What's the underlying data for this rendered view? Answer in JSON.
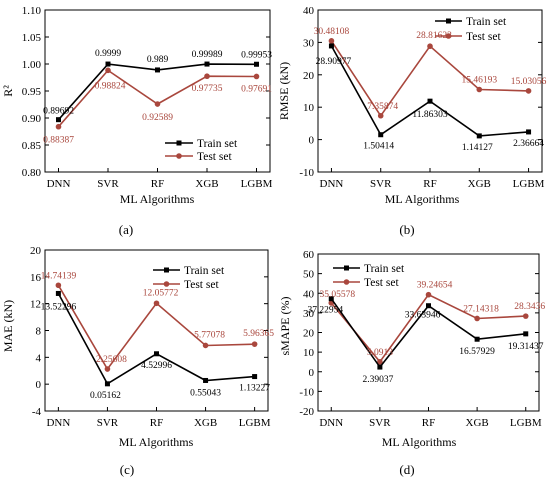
{
  "colors": {
    "train": "#000000",
    "test": "#A9473D"
  },
  "chart_data": [
    {
      "type": "line",
      "panel_label": "(a)",
      "xlabel": "ML Algorithms",
      "ylabel": "R²",
      "categories": [
        "DNN",
        "SVR",
        "RF",
        "XGB",
        "LGBM"
      ],
      "ylim": [
        0.8,
        1.1
      ],
      "yticks": [
        "0.80",
        "0.85",
        "0.90",
        "0.95",
        "1.00",
        "1.05",
        "1.10"
      ],
      "grid": false,
      "legend_position": "lower-right",
      "series": [
        {
          "name": "Train set",
          "values": [
            0.89692,
            0.9999,
            0.989,
            0.99989,
            0.99953
          ],
          "labels": [
            "0.89692",
            "0.9999",
            "0.989",
            "0.99989",
            "0.99953"
          ]
        },
        {
          "name": "Test set",
          "values": [
            0.88387,
            0.98824,
            0.92589,
            0.97735,
            0.97691
          ],
          "labels": [
            "0.88387",
            "0.98824",
            "0.92589",
            "0.97735",
            "0.97691"
          ]
        }
      ]
    },
    {
      "type": "line",
      "panel_label": "(b)",
      "xlabel": "ML Algorithms",
      "ylabel": "RMSE (kN)",
      "categories": [
        "DNN",
        "SVR",
        "RF",
        "XGB",
        "LGBM"
      ],
      "ylim": [
        -10,
        40
      ],
      "yticks": [
        "-10",
        "0",
        "10",
        "20",
        "30",
        "40"
      ],
      "grid": false,
      "legend_position": "top-right",
      "series": [
        {
          "name": "Train set",
          "values": [
            28.90977,
            1.50414,
            11.86303,
            1.14127,
            2.36664
          ],
          "labels": [
            "28.90977",
            "1.50414",
            "11.86303",
            "1.14127",
            "2.36664"
          ]
        },
        {
          "name": "Test set",
          "values": [
            30.48108,
            7.35874,
            28.81623,
            15.46193,
            15.03056
          ],
          "labels": [
            "30.48108",
            "7.35874",
            "28.81623",
            "15.46193",
            "15.03056"
          ]
        }
      ]
    },
    {
      "type": "line",
      "panel_label": "(c)",
      "xlabel": "ML Algorithms",
      "ylabel": "MAE (kN)",
      "categories": [
        "DNN",
        "SVR",
        "RF",
        "XGB",
        "LGBM"
      ],
      "ylim": [
        -4,
        20
      ],
      "yticks": [
        "-4",
        "0",
        "4",
        "8",
        "12",
        "16",
        "20"
      ],
      "grid": false,
      "legend_position": "top-right",
      "series": [
        {
          "name": "Train set",
          "values": [
            13.52296,
            0.05162,
            4.52996,
            0.55043,
            1.13227
          ],
          "labels": [
            "13.52296",
            "0.05162",
            "4.52996",
            "0.55043",
            "1.13227"
          ]
        },
        {
          "name": "Test set",
          "values": [
            14.74139,
            2.25608,
            12.05772,
            5.77078,
            5.96365
          ],
          "labels": [
            "14.74139",
            "2.25608",
            "12.05772",
            "5.77078",
            "5.96365"
          ]
        }
      ]
    },
    {
      "type": "line",
      "panel_label": "(d)",
      "xlabel": "ML Algorithms",
      "ylabel": "sMAPE (%)",
      "categories": [
        "DNN",
        "SVR",
        "RF",
        "XGB",
        "LGBM"
      ],
      "ylim": [
        -20,
        60
      ],
      "yticks": [
        "-20",
        "-10",
        "0",
        "10",
        "20",
        "30",
        "40",
        "50",
        "60"
      ],
      "grid": false,
      "legend_position": "top-left",
      "series": [
        {
          "name": "Train set",
          "values": [
            37.22954,
            2.39037,
            33.63946,
            16.57929,
            19.31437
          ],
          "labels": [
            "37.22954",
            "2.39037",
            "33.63946",
            "16.57929",
            "19.31437"
          ]
        },
        {
          "name": "Test set",
          "values": [
            35.05578,
            5.0913,
            39.24654,
            27.14318,
            28.3436
          ],
          "labels": [
            "35.05578",
            "5.0913",
            "39.24654",
            "27.14318",
            "28.3436"
          ]
        }
      ]
    }
  ]
}
